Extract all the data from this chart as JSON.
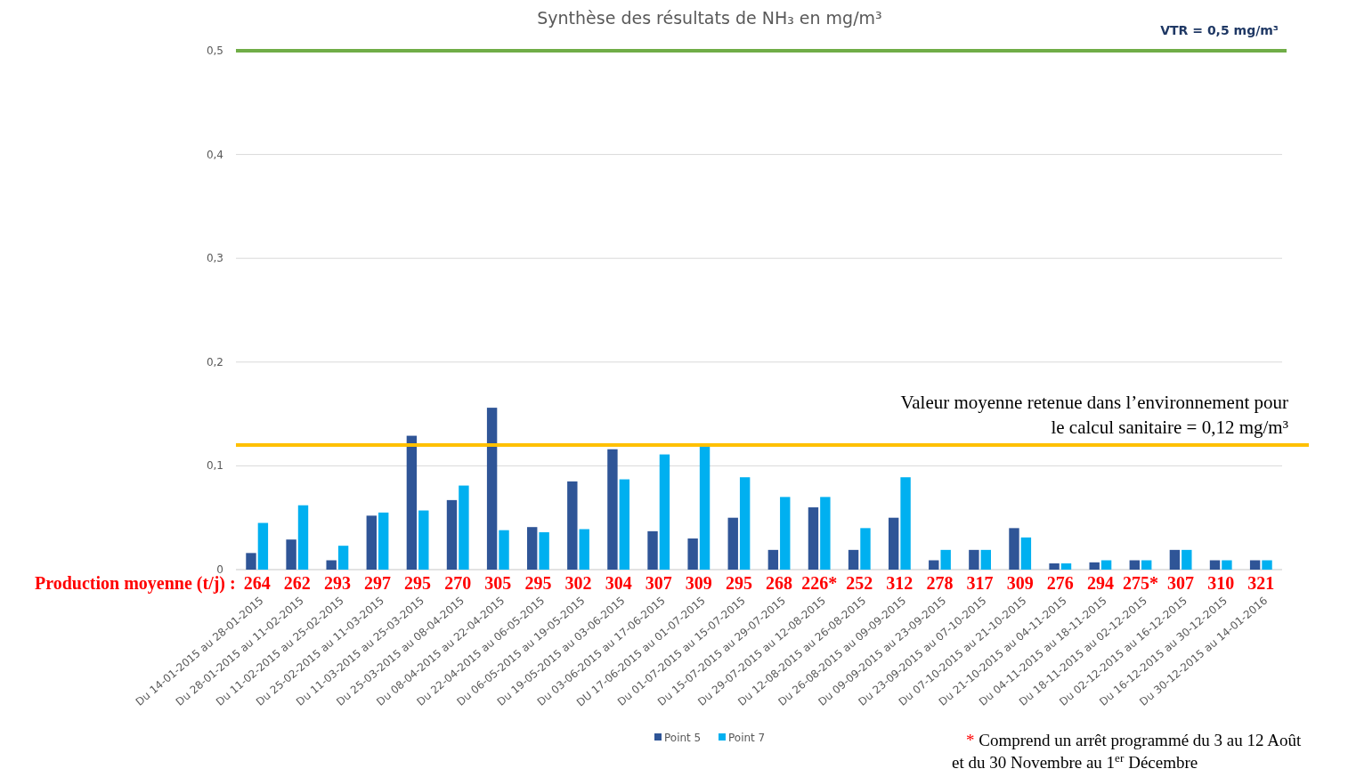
{
  "chart_data": {
    "type": "bar",
    "title": "Synthèse des résultats de NH₃ en mg/m³",
    "categories": [
      "Du 14-01-2015 au 28-01-2015",
      "Du 28-01-2015 au 11-02-2015",
      "Du 11-02-2015 au 25-02-2015",
      "Du 25-02-2015 au 11-03-2015",
      "Du 11-03-2015 au 25-03-2015",
      "Du 25-03-2015 au 08-04-2015",
      "Du 08-04-2015 au 22-04-2015",
      "Du 22-04-2015 au 06-05-2015",
      "Du 06-05-2015 au 19-05-2015",
      "Du 19-05-2015 au 03-06-2015",
      "Du 03-06-2015 au 17-06-2015",
      "DU 17-06-2015 au 01-07-2015",
      "Du 01-07-2015 au 15-07-2015",
      "Du 15-07-2015 au 29-07-2015",
      "Du 29-07-2015 au 12-08-2015",
      "Du 12-08-2015 au 26-08-2015",
      "Du 26-08-2015 au 09-09-2015",
      "Du 09-09-2015 au 23-09-2015",
      "Du 23-09-2015 au 07-10-2015",
      "Du 07-10-2015 au 21-10-2015",
      "Du 21-10-2015 au 04-11-2015",
      "Du 04-11-2015 au 18-11-2015",
      "Du 18-11-2015 au 02-12-2015",
      "Du 02-12-2015 au 16-12-2015",
      "Du 16-12-2015 au 30-12-2015",
      "Du 30-12-2015 au 14-01-2016"
    ],
    "series": [
      {
        "name": "Point 5",
        "color": "#2f5597",
        "values": [
          0.016,
          0.029,
          0.009,
          0.052,
          0.129,
          0.067,
          0.156,
          0.041,
          0.085,
          0.116,
          0.037,
          0.03,
          0.05,
          0.019,
          0.06,
          0.019,
          0.05,
          0.009,
          0.019,
          0.04,
          0.006,
          0.007,
          0.009,
          0.019,
          0.009,
          0.009
        ]
      },
      {
        "name": "Point 7",
        "color": "#00b0f0",
        "values": [
          0.045,
          0.062,
          0.023,
          0.055,
          0.057,
          0.081,
          0.038,
          0.036,
          0.039,
          0.087,
          0.111,
          0.12,
          0.089,
          0.07,
          0.07,
          0.04,
          0.089,
          0.019,
          0.019,
          0.031,
          0.006,
          0.009,
          0.009,
          0.019,
          0.009,
          0.009
        ]
      }
    ],
    "ylim": [
      0,
      0.5
    ],
    "yticks": [
      0,
      {
        "value": 0.1,
        "label": "0,1"
      },
      {
        "value": 0.2,
        "label": "0,2"
      },
      {
        "value": 0.3,
        "label": "0,3"
      },
      {
        "value": 0.4,
        "label": "0,4"
      },
      {
        "value": 0.5,
        "label": "0,5"
      }
    ],
    "grid": "y",
    "legend": "bottom",
    "ref_lines": [
      {
        "axis": "y",
        "value": 0.5,
        "label": "VTR = 0,5 mg/m³",
        "color": "#70ad47"
      },
      {
        "axis": "y",
        "value": 0.12,
        "label": "Valeur moyenne retenue dans l’environnement pour le calcul sanitaire = 0,12 mg/m³",
        "color": "#ffc000"
      }
    ],
    "annotations": [
      "Production moyenne (t/j) :",
      "264",
      "262",
      "293",
      "297",
      "295",
      "270",
      "305",
      "295",
      "302",
      "304",
      "307",
      "309",
      "295",
      "268",
      "226*",
      "252",
      "312",
      "278",
      "317",
      "309",
      "276",
      "294",
      "275*",
      "307",
      "310",
      "321",
      "* Comprend un arrêt programmé du 3 au 12 Août et du 30 Novembre au 1$^{er}$ Décembre"
    ]
  }
}
